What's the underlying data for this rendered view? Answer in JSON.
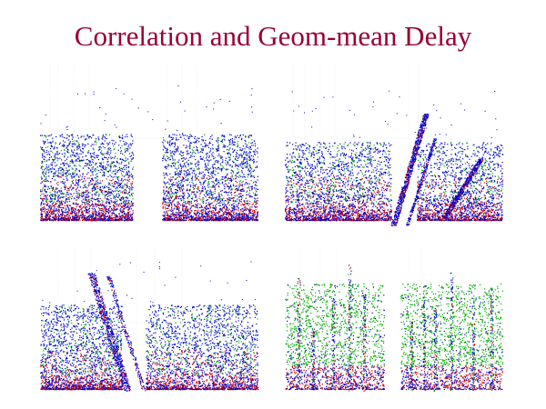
{
  "title": "Correlation and Geom-mean Delay",
  "colors": {
    "title": "#990033",
    "dense": "#0000cc",
    "mid": "#cc0000",
    "sparse": "#00aa00",
    "background": "#ffffff",
    "grid": "#e4e4e4"
  },
  "chart_data": [
    {
      "type": "scatter",
      "id": "top-left",
      "title": "",
      "xlabel": "",
      "ylabel": "",
      "grid": true,
      "legend": "none",
      "series": [
        {
          "name": "",
          "color": "#0000cc"
        },
        {
          "name": "",
          "color": "#cc0000"
        },
        {
          "name": "",
          "color": "#00aa00"
        }
      ]
    },
    {
      "type": "scatter",
      "id": "top-right",
      "title": "",
      "xlabel": "",
      "ylabel": "",
      "grid": true,
      "legend": "none",
      "series": [
        {
          "name": "",
          "color": "#0000cc"
        },
        {
          "name": "",
          "color": "#cc0000"
        },
        {
          "name": "",
          "color": "#00aa00"
        }
      ]
    },
    {
      "type": "scatter",
      "id": "bottom-left",
      "title": "",
      "xlabel": "",
      "ylabel": "",
      "grid": true,
      "legend": "none",
      "series": [
        {
          "name": "",
          "color": "#0000cc"
        },
        {
          "name": "",
          "color": "#cc0000"
        },
        {
          "name": "",
          "color": "#00aa00"
        }
      ]
    },
    {
      "type": "scatter",
      "id": "bottom-right",
      "title": "",
      "xlabel": "",
      "ylabel": "",
      "grid": true,
      "legend": "none",
      "series": [
        {
          "name": "",
          "color": "#00aa00"
        },
        {
          "name": "",
          "color": "#0000cc"
        },
        {
          "name": "",
          "color": "#cc0000"
        }
      ]
    }
  ]
}
